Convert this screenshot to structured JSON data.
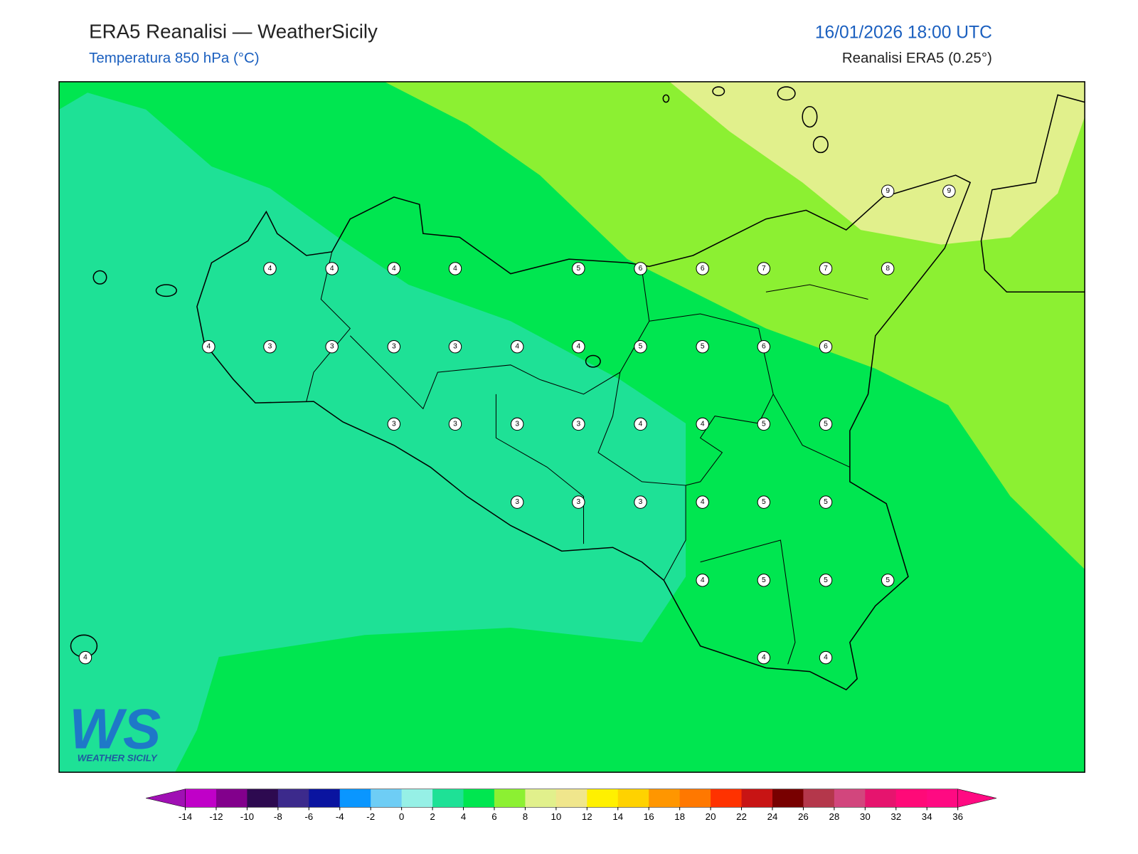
{
  "header": {
    "title": "ERA5 Reanalisi — WeatherSicily",
    "subtitle": "Temperatura 850 hPa (°C)",
    "date": "16/01/2026 18:00 UTC",
    "source": "Reanalisi ERA5 (0.25°)"
  },
  "stations": [
    9,
    9,
    4,
    4,
    4,
    4,
    5,
    6,
    6,
    7,
    7,
    8,
    4,
    3,
    3,
    3,
    3,
    4,
    4,
    5,
    5,
    6,
    6,
    3,
    3,
    3,
    3,
    4,
    4,
    5,
    5,
    3,
    3,
    3,
    4,
    5,
    5,
    4,
    5,
    5,
    5,
    4,
    4,
    4
  ],
  "colorbar": {
    "ticks": [
      -14,
      -12,
      -10,
      -8,
      -6,
      -4,
      -2,
      0,
      2,
      4,
      6,
      8,
      10,
      12,
      14,
      16,
      18,
      20,
      22,
      24,
      26,
      28,
      30,
      32,
      34,
      36
    ],
    "under_color": "#a010b4",
    "over_color": "#ff0a82",
    "colors": [
      "#c000c8",
      "#82008c",
      "#2d0a50",
      "#3c2a8c",
      "#0a14a0",
      "#0a96ff",
      "#6ecdf5",
      "#96f0e6",
      "#1ee196",
      "#00e650",
      "#8cf032",
      "#e1f08c",
      "#f0e68c",
      "#fff000",
      "#ffd200",
      "#ff9600",
      "#ff7800",
      "#ff3200",
      "#c81414",
      "#780000",
      "#b4374b",
      "#d2467d",
      "#e6146e",
      "#ff0a78",
      "#ff0a82"
    ]
  },
  "logo": {
    "mark": "WS",
    "text": "WEATHER SICILY"
  }
}
